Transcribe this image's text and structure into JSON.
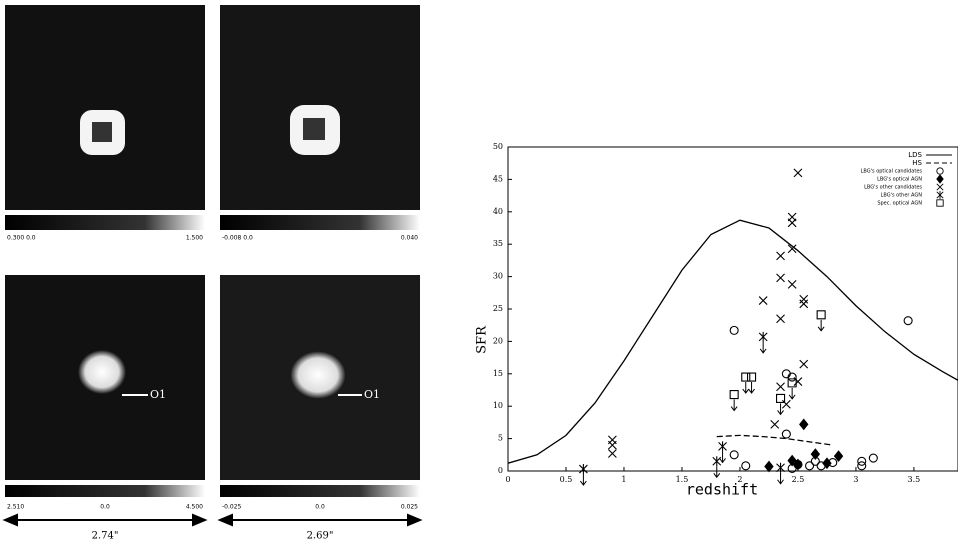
{
  "panels": [
    {
      "colorbar_labels": [
        "0.300 0.0",
        "1.500"
      ]
    },
    {
      "colorbar_labels": [
        "-0.008 0.0",
        "0.040"
      ]
    },
    {
      "colorbar_labels": [
        "2.510",
        "0.0",
        "4.500"
      ],
      "label": "O1"
    },
    {
      "colorbar_labels": [
        "-0.025",
        "0.0",
        "0.025"
      ],
      "label": "O1"
    }
  ],
  "scale_labels": [
    "2.74\"",
    "2.69\""
  ],
  "chart_data": {
    "type": "scatter",
    "xlabel": "redshift",
    "ylabel": "SFR",
    "xlim": [
      0,
      3.88
    ],
    "ylim": [
      0,
      50
    ],
    "xticks": [
      0,
      0.5,
      1,
      1.5,
      2,
      2.5,
      3,
      3.5
    ],
    "yticks": [
      0,
      5,
      10,
      15,
      20,
      25,
      30,
      35,
      40,
      45,
      50
    ],
    "legend": "upper right",
    "lines": [
      {
        "name": "LDS",
        "dash": false,
        "x": [
          0,
          0.25,
          0.5,
          0.75,
          1,
          1.25,
          1.5,
          1.75,
          2,
          2.25,
          2.5,
          2.75,
          3,
          3.25,
          3.5,
          3.75,
          3.88
        ],
        "values": [
          1.2,
          2.5,
          5.5,
          10.5,
          17,
          24,
          31,
          36.5,
          38.7,
          37.5,
          34,
          30,
          25.5,
          21.5,
          18,
          15.3,
          14
        ]
      },
      {
        "name": "HS",
        "dash": true,
        "x": [
          1.8,
          2,
          2.2,
          2.4,
          2.6,
          2.8
        ],
        "values": [
          5.3,
          5.5,
          5.3,
          5,
          4.5,
          4
        ]
      }
    ],
    "series": [
      {
        "name": "LBG's optical candidates",
        "marker": "circle",
        "upper_limit": false,
        "x": [
          1.95,
          1.95,
          2.05,
          2.4,
          2.4,
          2.5,
          2.45,
          2.6,
          2.65,
          2.7,
          2.8,
          3.05,
          3.05,
          3.15,
          3.45,
          2.45
        ],
        "values": [
          21.7,
          2.5,
          0.8,
          15,
          5.7,
          1,
          0.4,
          0.8,
          1.5,
          0.8,
          1.3,
          1.5,
          0.8,
          2,
          23.2,
          14.5
        ]
      },
      {
        "name": "LBG's optical AGN",
        "marker": "diamond",
        "upper_limit": false,
        "x": [
          2.25,
          2.45,
          2.55,
          2.65,
          2.75,
          2.85,
          2.5
        ],
        "values": [
          0.7,
          1.6,
          7.2,
          2.6,
          1.2,
          2.3,
          1
        ]
      },
      {
        "name": "LBG's other candidates",
        "marker": "x",
        "upper_limit": false,
        "x": [
          0.9,
          0.9,
          0.9,
          2.2,
          2.35,
          2.35,
          2.35,
          2.45,
          2.45,
          2.45,
          2.45,
          2.55,
          2.55,
          2.55,
          2.5,
          2.35,
          2.4,
          2.3,
          2.5
        ],
        "values": [
          4.8,
          4,
          2.7,
          26.3,
          33.2,
          29.8,
          23.5,
          38.3,
          39.2,
          34.3,
          28.8,
          26.5,
          25.8,
          16.5,
          46,
          13,
          10.3,
          7.2,
          13.8
        ]
      },
      {
        "name": "LBG's other AGN",
        "marker": "asterisk",
        "upper_limit": true,
        "x": [
          0.65,
          1.8,
          1.85,
          2.2,
          2.35
        ],
        "values": [
          0.3,
          1.5,
          3.8,
          20.7,
          0.5
        ]
      },
      {
        "name": "Spec. optical AGN",
        "marker": "square",
        "upper_limit": true,
        "x": [
          1.95,
          2.05,
          2.1,
          2.35,
          2.45,
          2.7
        ],
        "values": [
          11.8,
          14.5,
          14.5,
          11.2,
          13.6,
          24.1
        ]
      }
    ]
  }
}
